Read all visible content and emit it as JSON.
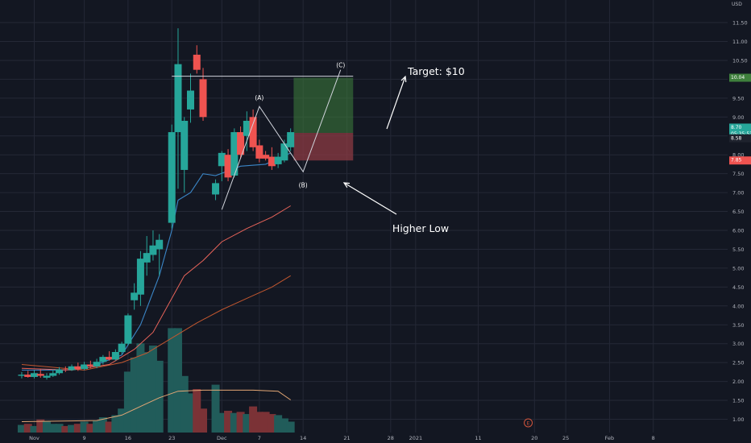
{
  "chart_data": {
    "type": "candlestick",
    "title": "",
    "xlabel": "",
    "ylabel": "",
    "currency": "USD",
    "ylim": [
      0.8,
      11.6
    ],
    "y_ticks": [
      "1.00",
      "1.50",
      "2.00",
      "2.50",
      "3.00",
      "3.50",
      "4.00",
      "4.50",
      "5.00",
      "5.50",
      "6.00",
      "6.50",
      "7.00",
      "7.50",
      "8.00",
      "8.50",
      "9.00",
      "9.50",
      "10.00",
      "10.50",
      "11.00",
      "11.50"
    ],
    "x_ticks": [
      {
        "label": "Nov",
        "day": 0
      },
      {
        "label": "9",
        "day": 8
      },
      {
        "label": "16",
        "day": 15
      },
      {
        "label": "23",
        "day": 22
      },
      {
        "label": "Dec",
        "day": 30
      },
      {
        "label": "7",
        "day": 36
      },
      {
        "label": "14",
        "day": 43
      },
      {
        "label": "21",
        "day": 50
      },
      {
        "label": "28",
        "day": 57
      },
      {
        "label": "2021",
        "day": 61
      },
      {
        "label": "11",
        "day": 71
      },
      {
        "label": "20",
        "day": 80
      },
      {
        "label": "25",
        "day": 85
      },
      {
        "label": "Feb",
        "day": 92
      },
      {
        "label": "8",
        "day": 99
      }
    ],
    "candles": [
      {
        "day": -2,
        "o": 2.15,
        "h": 2.25,
        "l": 2.08,
        "c": 2.18,
        "v": 0.35
      },
      {
        "day": -1,
        "o": 2.18,
        "h": 2.28,
        "l": 2.1,
        "c": 2.12,
        "v": 0.4
      },
      {
        "day": 0,
        "o": 2.12,
        "h": 2.3,
        "l": 2.08,
        "c": 2.22,
        "v": 0.3
      },
      {
        "day": 1,
        "o": 2.2,
        "h": 2.32,
        "l": 2.1,
        "c": 2.15,
        "v": 0.6
      },
      {
        "day": 2,
        "o": 2.1,
        "h": 2.22,
        "l": 2.05,
        "c": 2.15,
        "v": 0.5
      },
      {
        "day": 3,
        "o": 2.15,
        "h": 2.32,
        "l": 2.12,
        "c": 2.22,
        "v": 0.4
      },
      {
        "day": 4,
        "o": 2.22,
        "h": 2.38,
        "l": 2.18,
        "c": 2.32,
        "v": 0.4
      },
      {
        "day": 5,
        "o": 2.32,
        "h": 2.4,
        "l": 2.25,
        "c": 2.3,
        "v": 0.3
      },
      {
        "day": 6,
        "o": 2.3,
        "h": 2.45,
        "l": 2.28,
        "c": 2.4,
        "v": 0.35
      },
      {
        "day": 7,
        "o": 2.4,
        "h": 2.5,
        "l": 2.28,
        "c": 2.33,
        "v": 0.4
      },
      {
        "day": 8,
        "o": 2.33,
        "h": 2.52,
        "l": 2.3,
        "c": 2.45,
        "v": 0.5
      },
      {
        "day": 9,
        "o": 2.45,
        "h": 2.55,
        "l": 2.35,
        "c": 2.4,
        "v": 0.4
      },
      {
        "day": 10,
        "o": 2.4,
        "h": 2.6,
        "l": 2.35,
        "c": 2.52,
        "v": 0.55
      },
      {
        "day": 11,
        "o": 2.52,
        "h": 2.7,
        "l": 2.45,
        "c": 2.65,
        "v": 0.7
      },
      {
        "day": 12,
        "o": 2.65,
        "h": 2.8,
        "l": 2.55,
        "c": 2.58,
        "v": 0.5
      },
      {
        "day": 13,
        "o": 2.58,
        "h": 2.85,
        "l": 2.55,
        "c": 2.78,
        "v": 0.8
      },
      {
        "day": 14,
        "o": 2.78,
        "h": 3.05,
        "l": 2.72,
        "c": 3.0,
        "v": 1.1
      },
      {
        "day": 15,
        "o": 3.0,
        "h": 3.8,
        "l": 2.95,
        "c": 3.75,
        "v": 2.8
      },
      {
        "day": 16,
        "o": 4.15,
        "h": 4.6,
        "l": 3.9,
        "c": 4.35,
        "v": 3.45
      },
      {
        "day": 17,
        "o": 4.3,
        "h": 5.45,
        "l": 4.0,
        "c": 5.25,
        "v": 4.1
      },
      {
        "day": 18,
        "o": 5.15,
        "h": 5.85,
        "l": 4.8,
        "c": 5.4,
        "v": 3.7
      },
      {
        "day": 19,
        "o": 5.35,
        "h": 6.0,
        "l": 5.2,
        "c": 5.6,
        "v": 4.0
      },
      {
        "day": 20,
        "o": 5.5,
        "h": 5.9,
        "l": 4.8,
        "c": 5.75,
        "v": 3.3
      },
      {
        "day": 22,
        "o": 6.2,
        "h": 8.8,
        "l": 6.05,
        "c": 8.6,
        "v": 4.8
      },
      {
        "day": 23,
        "o": 8.6,
        "h": 11.35,
        "l": 7.1,
        "c": 10.4,
        "v": 4.8
      },
      {
        "day": 24,
        "o": 7.6,
        "h": 9.0,
        "l": 7.0,
        "c": 8.9,
        "v": 2.6
      },
      {
        "day": 25,
        "o": 9.2,
        "h": 10.15,
        "l": 8.85,
        "c": 9.7,
        "v": 1.8
      },
      {
        "day": 26,
        "o": 10.65,
        "h": 10.9,
        "l": 10.15,
        "c": 10.25,
        "v": 2.0
      },
      {
        "day": 27,
        "o": 10.0,
        "h": 10.3,
        "l": 8.9,
        "c": 9.0,
        "v": 1.1
      },
      {
        "day": 29,
        "o": 6.95,
        "h": 7.35,
        "l": 6.8,
        "c": 7.25,
        "v": 2.2
      },
      {
        "day": 30,
        "o": 7.7,
        "h": 8.1,
        "l": 7.3,
        "c": 8.05,
        "v": 0.9
      },
      {
        "day": 31,
        "o": 8.0,
        "h": 8.15,
        "l": 7.3,
        "c": 7.4,
        "v": 1.0
      },
      {
        "day": 32,
        "o": 7.45,
        "h": 8.7,
        "l": 7.4,
        "c": 8.6,
        "v": 0.9
      },
      {
        "day": 33,
        "o": 8.6,
        "h": 8.75,
        "l": 7.9,
        "c": 8.0,
        "v": 0.95
      },
      {
        "day": 34,
        "o": 8.5,
        "h": 9.15,
        "l": 8.1,
        "c": 8.9,
        "v": 0.85
      },
      {
        "day": 35,
        "o": 9.0,
        "h": 9.2,
        "l": 8.1,
        "c": 8.2,
        "v": 1.2
      },
      {
        "day": 36,
        "o": 8.25,
        "h": 8.4,
        "l": 7.8,
        "c": 7.9,
        "v": 0.95
      },
      {
        "day": 37,
        "o": 8.0,
        "h": 8.1,
        "l": 7.85,
        "c": 7.9,
        "v": 0.95
      },
      {
        "day": 38,
        "o": 7.95,
        "h": 8.2,
        "l": 7.6,
        "c": 7.7,
        "v": 0.85
      },
      {
        "day": 39,
        "o": 7.75,
        "h": 8.05,
        "l": 7.65,
        "c": 7.95,
        "v": 0.8
      },
      {
        "day": 40,
        "o": 7.85,
        "h": 8.4,
        "l": 7.8,
        "c": 8.3,
        "v": 0.65
      },
      {
        "day": 41,
        "o": 8.2,
        "h": 8.7,
        "l": 8.1,
        "c": 8.6,
        "v": 0.5
      }
    ],
    "volume_max": 5,
    "ma_short": [
      [
        -2,
        2.3
      ],
      [
        5,
        2.3
      ],
      [
        10,
        2.45
      ],
      [
        14,
        2.7
      ],
      [
        17,
        3.5
      ],
      [
        20,
        4.8
      ],
      [
        22,
        6.0
      ],
      [
        23,
        6.8
      ],
      [
        25,
        7.0
      ],
      [
        27,
        7.5
      ],
      [
        29,
        7.45
      ],
      [
        33,
        7.7
      ],
      [
        37,
        7.75
      ],
      [
        41,
        8.05
      ]
    ],
    "ma_mid": [
      [
        -2,
        2.35
      ],
      [
        6,
        2.3
      ],
      [
        12,
        2.45
      ],
      [
        16,
        2.85
      ],
      [
        19,
        3.3
      ],
      [
        22,
        4.2
      ],
      [
        24,
        4.8
      ],
      [
        27,
        5.2
      ],
      [
        30,
        5.7
      ],
      [
        34,
        6.05
      ],
      [
        38,
        6.35
      ],
      [
        41,
        6.65
      ]
    ],
    "ma_long": [
      [
        -2,
        2.45
      ],
      [
        8,
        2.3
      ],
      [
        14,
        2.5
      ],
      [
        18,
        2.75
      ],
      [
        22,
        3.15
      ],
      [
        26,
        3.55
      ],
      [
        30,
        3.9
      ],
      [
        34,
        4.2
      ],
      [
        38,
        4.5
      ],
      [
        41,
        4.8
      ]
    ],
    "vol_ma": [
      [
        -2,
        0.5
      ],
      [
        10,
        0.55
      ],
      [
        14,
        0.8
      ],
      [
        17,
        1.2
      ],
      [
        20,
        1.6
      ],
      [
        23,
        1.9
      ],
      [
        27,
        1.95
      ],
      [
        31,
        1.95
      ],
      [
        35,
        1.95
      ],
      [
        39,
        1.9
      ],
      [
        41,
        1.5
      ]
    ],
    "resistance_line": {
      "from_day": 22,
      "to_day": 51,
      "y": 10.08
    },
    "target_box": {
      "from_day": 42,
      "to_day": 51,
      "top": 10.04,
      "entry": 8.58,
      "stop": 7.85
    },
    "wave": [
      [
        30,
        6.55
      ],
      [
        36,
        9.28
      ],
      [
        43,
        7.55
      ],
      [
        49,
        10.25
      ]
    ],
    "wave_labels": {
      "a": "(A)",
      "b": "(B)",
      "c": "(C)"
    },
    "price_labels": {
      "target": "10.04",
      "current": "8.70",
      "countdown": "05:35:53",
      "entry": "8.58",
      "stop": "7.85"
    },
    "annotations": {
      "target_text": "Target: $10",
      "higher_low_text": "Higher Low"
    },
    "event_marker": {
      "day": 79,
      "label": "E"
    }
  },
  "colors": {
    "background": "#131722",
    "grid": "#242836",
    "axis_text": "#b2b5be",
    "up": "#26a69a",
    "down": "#ef5350",
    "vol_up": "#215c5a",
    "vol_down": "#7b3236",
    "ma_short": "#3b86c7",
    "ma_mid": "#e8645a",
    "ma_long": "#c2572f",
    "vol_ma": "#e4a775",
    "profit": "#3e7f3c",
    "loss": "#8c3b43",
    "drawing": "#d1d4dc"
  }
}
